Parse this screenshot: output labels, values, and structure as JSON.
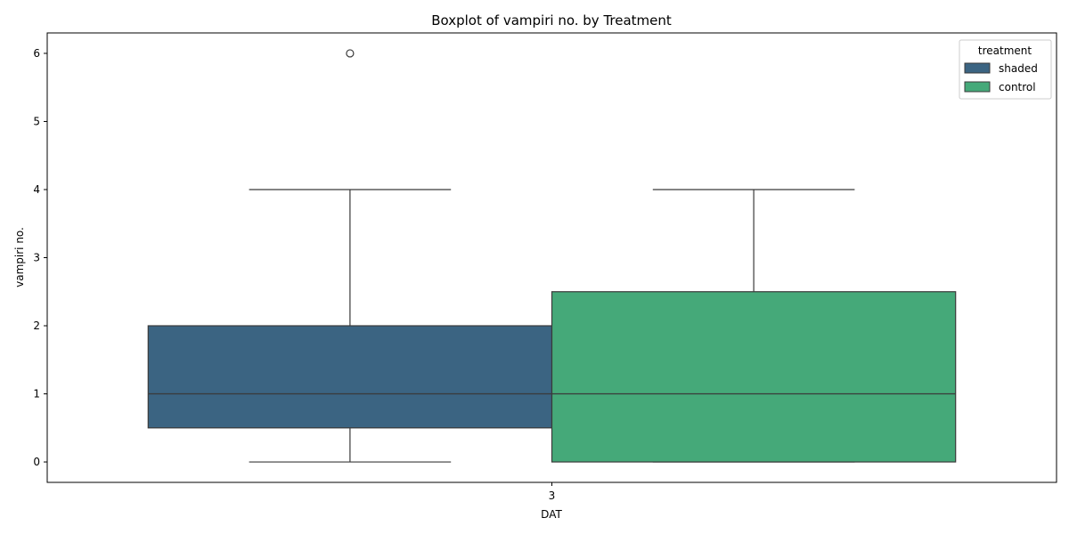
{
  "chart_data": {
    "type": "boxplot",
    "title": "Boxplot of vampiri no. by Treatment",
    "xlabel": "DAT",
    "ylabel": "vampiri no.",
    "categories": [
      "3"
    ],
    "ylim": [
      -0.3,
      6.3
    ],
    "yticks": [
      0,
      1,
      2,
      3,
      4,
      5,
      6
    ],
    "legend": {
      "title": "treatment",
      "placement": "top-right"
    },
    "series": [
      {
        "name": "shaded",
        "color": "#3b6482",
        "whisker_low": 0,
        "q1": 0.5,
        "median": 1,
        "q3": 2,
        "whisker_high": 4,
        "outliers": [
          6
        ]
      },
      {
        "name": "control",
        "color": "#45a979",
        "whisker_low": 0,
        "q1": 0,
        "median": 1,
        "q3": 2.5,
        "whisker_high": 4,
        "outliers": []
      }
    ]
  }
}
